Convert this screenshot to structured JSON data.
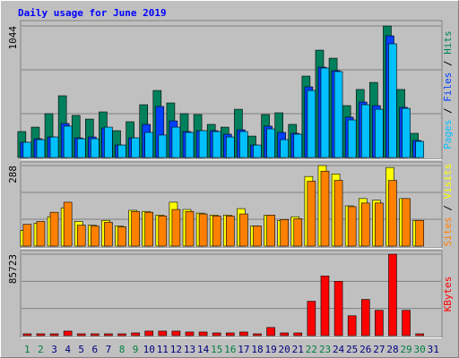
{
  "chart_data": [
    {
      "type": "bar",
      "title": "Daily usage for June 2019",
      "title_color": "#0000ff",
      "ylim": [
        0,
        1044
      ],
      "yticks": [
        1044
      ],
      "legend_separator": " / ",
      "series": [
        {
          "name": "Hits",
          "color": "#00805c",
          "values": [
            206,
            241,
            348,
            490,
            334,
            305,
            362,
            213,
            284,
            419,
            532,
            433,
            348,
            341,
            263,
            241,
            383,
            170,
            341,
            355,
            263,
            646,
            852,
            788,
            412,
            540,
            596,
            1044,
            540,
            192,
            null
          ]
        },
        {
          "name": "Files",
          "color": "#0040ff",
          "values": [
            121,
            149,
            163,
            270,
            156,
            163,
            234,
            99,
            156,
            263,
            405,
            291,
            206,
            213,
            213,
            185,
            220,
            99,
            249,
            199,
            192,
            561,
            717,
            689,
            320,
            440,
            412,
            966,
            398,
            135,
            null
          ]
        },
        {
          "name": "Pages",
          "color": "#00c0ff",
          "values": [
            121,
            142,
            163,
            249,
            149,
            149,
            241,
            99,
            156,
            199,
            178,
            241,
            199,
            213,
            206,
            163,
            206,
            99,
            227,
            142,
            185,
            532,
            710,
            682,
            298,
            419,
            383,
            902,
            390,
            128,
            null
          ]
        }
      ]
    },
    {
      "type": "bar",
      "ylim": [
        0,
        288
      ],
      "yticks": [
        288
      ],
      "legend_separator": " / ",
      "series": [
        {
          "name": "Visits",
          "color": "#ffff00",
          "values": [
            56,
            82,
            105,
            137,
            88,
            75,
            92,
            72,
            128,
            124,
            111,
            157,
            131,
            118,
            111,
            111,
            134,
            72,
            111,
            92,
            105,
            249,
            288,
            258,
            144,
            170,
            164,
            281,
            170,
            92,
            null
          ]
        },
        {
          "name": "Sites",
          "color": "#ff8000",
          "values": [
            78,
            88,
            121,
            157,
            75,
            72,
            85,
            69,
            124,
            121,
            108,
            131,
            124,
            115,
            108,
            108,
            115,
            72,
            111,
            95,
            98,
            232,
            268,
            235,
            141,
            154,
            154,
            235,
            170,
            92,
            null
          ]
        }
      ]
    },
    {
      "type": "bar",
      "ylim": [
        0,
        85723
      ],
      "yticks": [
        85723
      ],
      "series": [
        {
          "name": "KBytes",
          "color": "#ff0000",
          "values": [
            1904,
            1904,
            1904,
            4760,
            1904,
            1904,
            1904,
            1904,
            2856,
            4760,
            4760,
            4760,
            3808,
            3808,
            2856,
            2856,
            3808,
            1904,
            8568,
            2856,
            2856,
            36176,
            62832,
            57120,
            20944,
            38080,
            26656,
            85723,
            26656,
            1904,
            null
          ]
        }
      ],
      "categories": [
        "1",
        "2",
        "3",
        "4",
        "5",
        "6",
        "7",
        "8",
        "9",
        "10",
        "11",
        "12",
        "13",
        "14",
        "15",
        "16",
        "17",
        "18",
        "19",
        "20",
        "21",
        "22",
        "23",
        "24",
        "25",
        "26",
        "27",
        "28",
        "29",
        "30",
        "31"
      ],
      "label_colors": [
        "#008040",
        "#008040",
        "#000080",
        "#000080",
        "#000080",
        "#000080",
        "#000080",
        "#008040",
        "#008040",
        "#000080",
        "#000080",
        "#000080",
        "#000080",
        "#000080",
        "#008040",
        "#008040",
        "#000080",
        "#000080",
        "#000080",
        "#000080",
        "#000080",
        "#008040",
        "#008040",
        "#000080",
        "#000080",
        "#000080",
        "#000080",
        "#000080",
        "#008040",
        "#008040",
        "#000080"
      ]
    }
  ]
}
